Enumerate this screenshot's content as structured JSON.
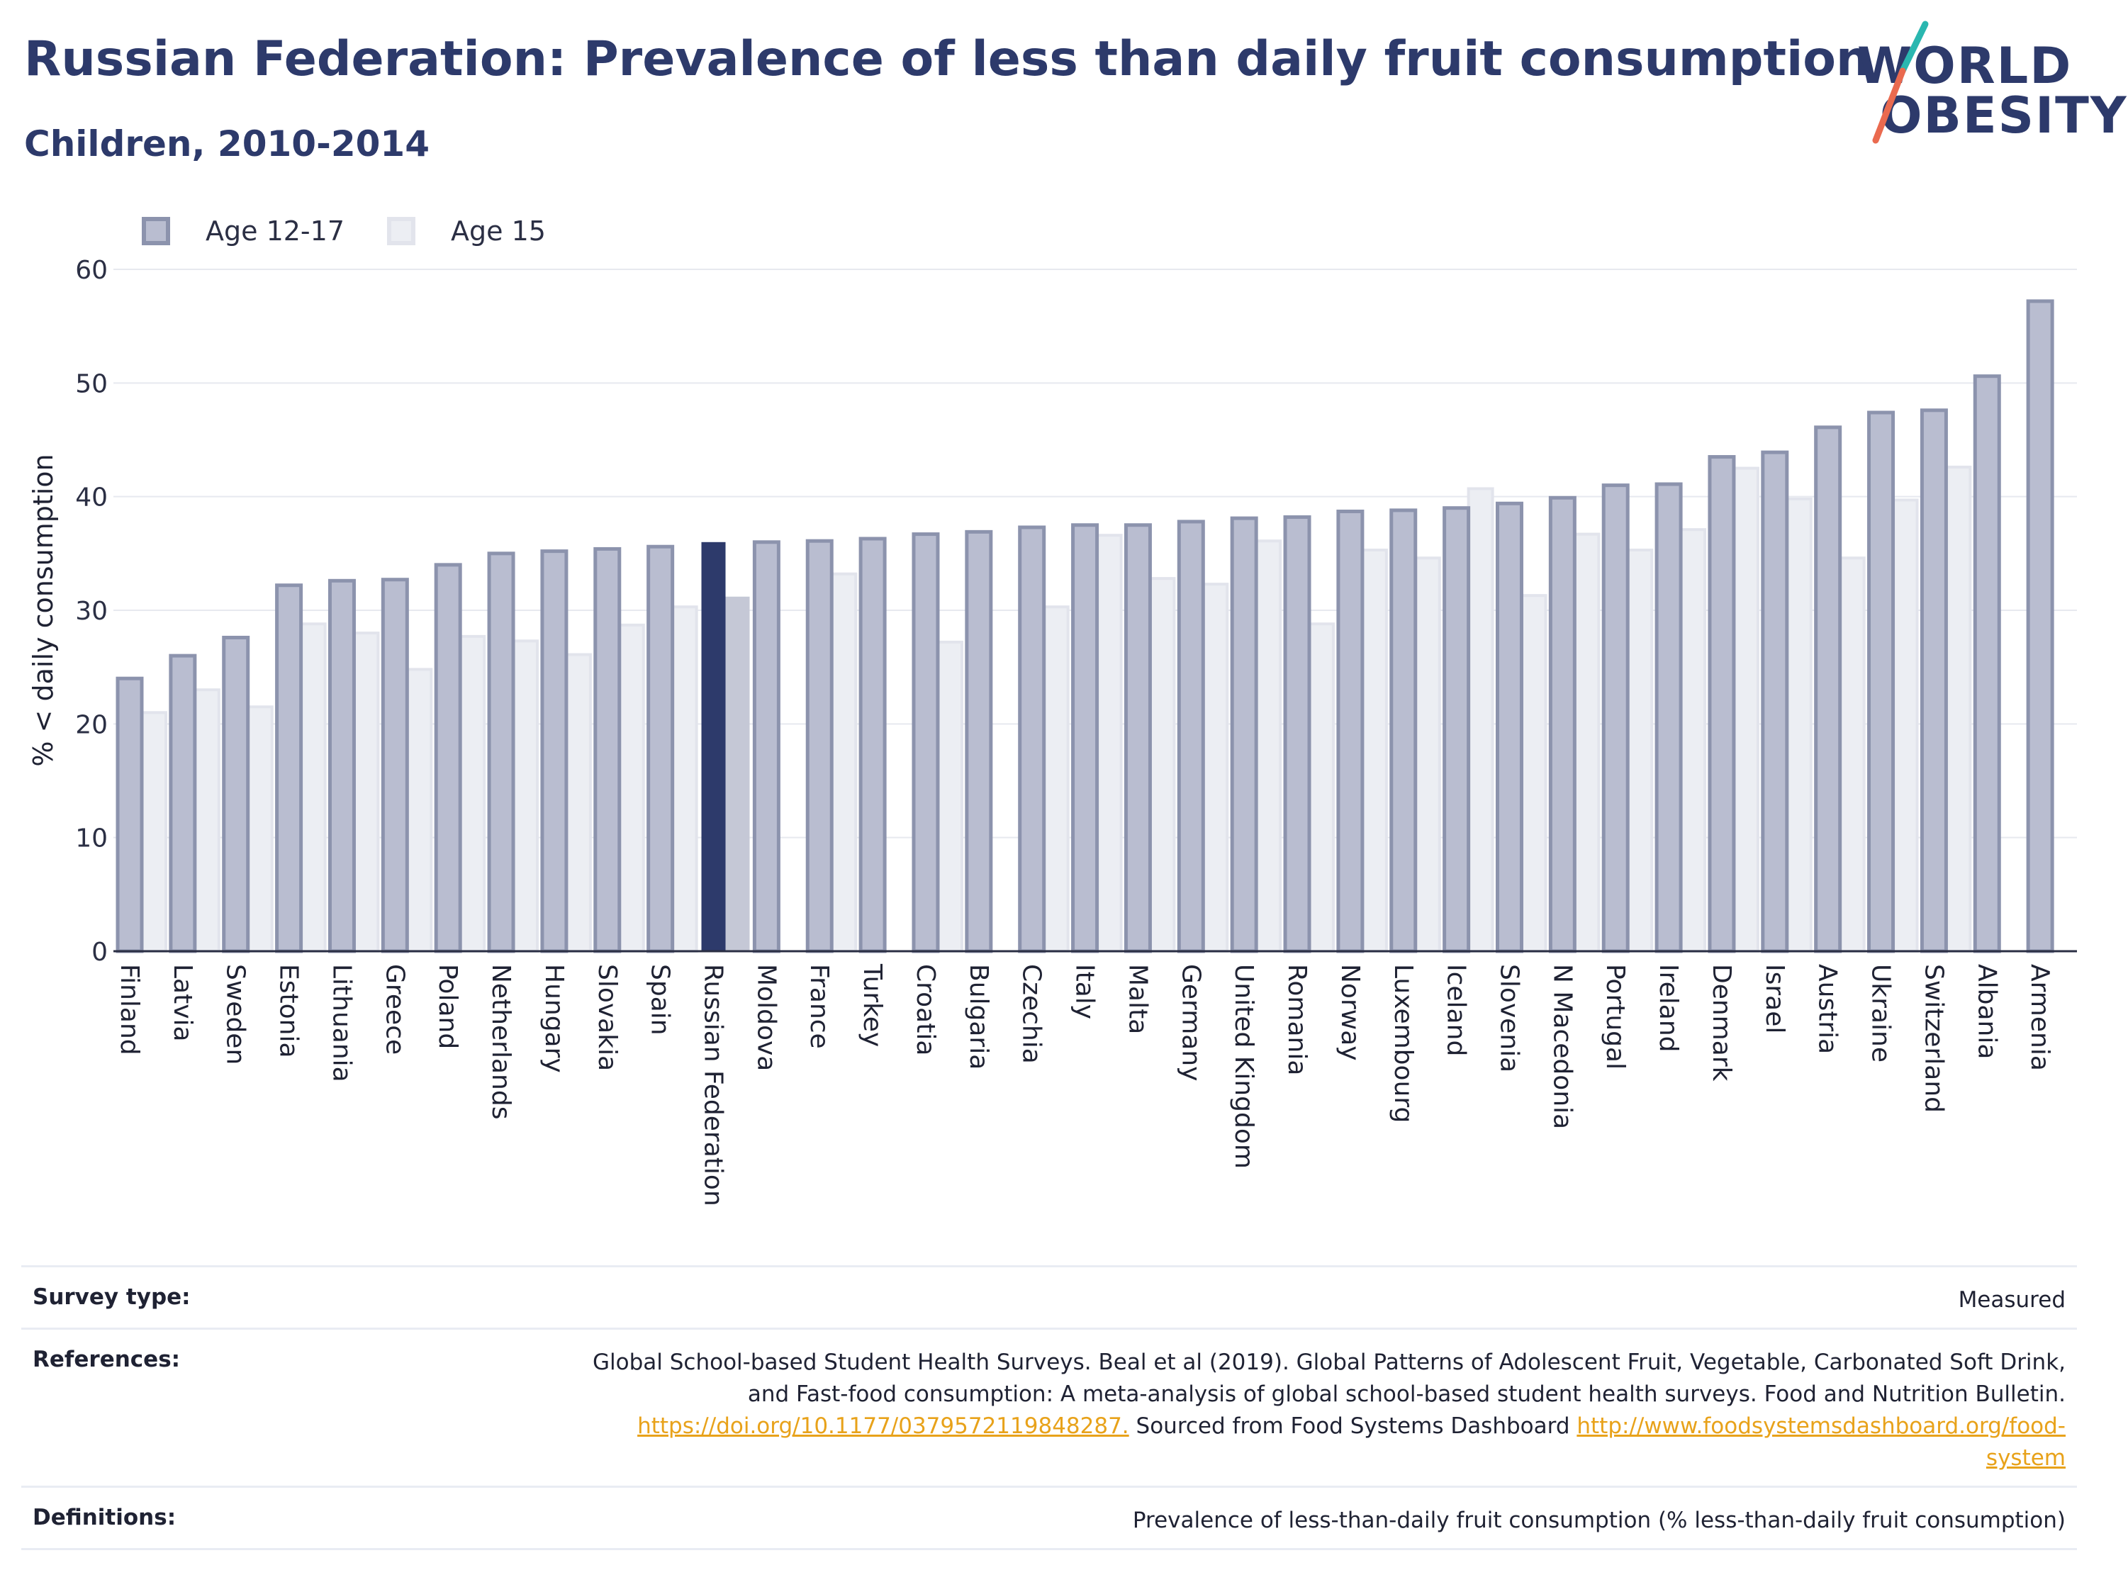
{
  "title": "Russian Federation: Prevalence of less than daily fruit consumption",
  "subtitle": "Children, 2010-2014",
  "logo": {
    "line1": "WORLD",
    "line2": "OBESITY"
  },
  "colors": {
    "title": "#2d3a6b",
    "series1_fill": "#b9bdd0",
    "series1_stroke": "#8c93ad",
    "series2_fill": "#eceef3",
    "series2_stroke": "#e2e4ec",
    "highlight1": "#2d3a6b",
    "highlight2": "#c5c8d6",
    "link": "#e8a21a"
  },
  "legend": [
    {
      "label": "Age 12-17",
      "swatch": "series1"
    },
    {
      "label": "Age 15",
      "swatch": "series2"
    }
  ],
  "chart_data": {
    "type": "bar",
    "ylabel": "% < daily consumption",
    "xlabel": "",
    "ylim": [
      0,
      60
    ],
    "yticks": [
      0,
      10,
      20,
      30,
      40,
      50,
      60
    ],
    "grid": true,
    "legend_position": "top-left",
    "highlight": "Russian Federation",
    "categories": [
      "Finland",
      "Latvia",
      "Sweden",
      "Estonia",
      "Lithuania",
      "Greece",
      "Poland",
      "Netherlands",
      "Hungary",
      "Slovakia",
      "Spain",
      "Russian Federation",
      "Moldova",
      "France",
      "Turkey",
      "Croatia",
      "Bulgaria",
      "Czechia",
      "Italy",
      "Malta",
      "Germany",
      "United Kingdom",
      "Romania",
      "Norway",
      "Luxembourg",
      "Iceland",
      "Slovenia",
      "N Macedonia",
      "Portugal",
      "Ireland",
      "Denmark",
      "Israel",
      "Austria",
      "Ukraine",
      "Switzerland",
      "Albania",
      "Armenia"
    ],
    "series": [
      {
        "name": "Age 12-17",
        "values": [
          24.0,
          26.0,
          27.6,
          32.2,
          32.6,
          32.7,
          34.0,
          35.0,
          35.2,
          35.4,
          35.6,
          36.0,
          36.0,
          36.1,
          36.3,
          36.7,
          36.9,
          37.3,
          37.5,
          37.5,
          37.8,
          38.1,
          38.2,
          38.7,
          38.8,
          39.0,
          39.4,
          39.9,
          41.0,
          41.1,
          43.5,
          43.9,
          46.1,
          47.4,
          47.6,
          50.6,
          57.2
        ]
      },
      {
        "name": "Age 15",
        "values": [
          21.0,
          23.0,
          21.5,
          28.8,
          28.0,
          24.8,
          27.7,
          27.3,
          26.1,
          28.7,
          30.3,
          31.2,
          null,
          33.2,
          null,
          27.2,
          null,
          30.3,
          36.6,
          32.8,
          32.3,
          36.1,
          28.8,
          35.3,
          34.6,
          40.7,
          31.3,
          36.7,
          35.3,
          37.1,
          42.5,
          39.8,
          34.6,
          39.7,
          42.6,
          null,
          null
        ]
      }
    ]
  },
  "footer": {
    "survey_label": "Survey type:",
    "survey_value": "Measured",
    "references_label": "References:",
    "references_line1": "Global School-based Student Health Surveys. Beal et al (2019). Global Patterns of Adolescent Fruit, Vegetable, Carbonated Soft Drink,",
    "references_line2": "and Fast-food consumption: A meta-analysis of global school-based student health surveys. Food and Nutrition Bulletin.",
    "references_link1": "https://doi.org/10.1177/0379572119848287.",
    "references_mid": " Sourced from Food Systems Dashboard ",
    "references_link2a": "http://www.foodsystemsdashboard.org/food-",
    "references_link2b": "system",
    "definitions_label": "Definitions:",
    "definitions_value": "Prevalence of less-than-daily fruit consumption (% less-than-daily fruit consumption)"
  }
}
